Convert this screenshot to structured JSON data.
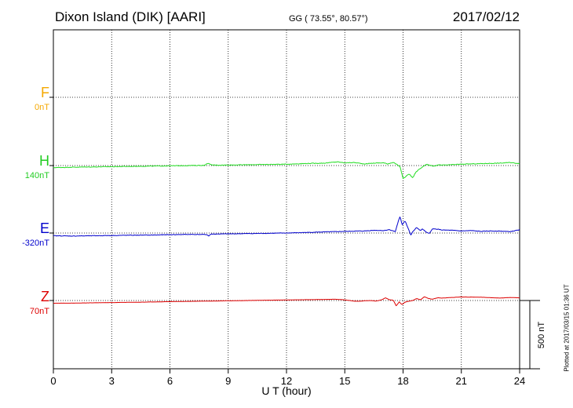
{
  "header": {
    "station": "Dixon Island (DIK)  [AARI]",
    "coords": "GG ( 73.55°,  80.57°)",
    "date": "2017/02/12"
  },
  "plotted_note": "Plotted at 2017/03/15 01:36 UT",
  "scale_label": "500 nT",
  "chart_data": {
    "type": "line",
    "xlabel": "U T (hour)",
    "xlim": [
      0,
      24
    ],
    "x_ticks": [
      "0",
      "3",
      "6",
      "9",
      "12",
      "15",
      "18",
      "21",
      "24"
    ],
    "grid": true,
    "scale_bar_nT": 500,
    "series": [
      {
        "name": "F",
        "baseline": "0nT",
        "color": "#f5a800",
        "points": []
      },
      {
        "name": "H",
        "baseline": "140nT",
        "color": "#22dd22",
        "points": [
          [
            0,
            -15
          ],
          [
            1,
            -12
          ],
          [
            2,
            -10
          ],
          [
            3,
            -8
          ],
          [
            4,
            -6
          ],
          [
            5,
            -4
          ],
          [
            6,
            -2
          ],
          [
            7,
            0
          ],
          [
            7.8,
            2
          ],
          [
            7.95,
            18
          ],
          [
            8.1,
            5
          ],
          [
            8.5,
            3
          ],
          [
            9,
            4
          ],
          [
            10,
            6
          ],
          [
            11,
            8
          ],
          [
            12,
            10
          ],
          [
            13,
            15
          ],
          [
            14,
            18
          ],
          [
            14.6,
            27
          ],
          [
            15,
            20
          ],
          [
            15.5,
            22
          ],
          [
            16,
            12
          ],
          [
            16.5,
            18
          ],
          [
            17,
            20
          ],
          [
            17.2,
            12
          ],
          [
            17.5,
            24
          ],
          [
            17.7,
            5
          ],
          [
            17.85,
            -10
          ],
          [
            18,
            -95
          ],
          [
            18.15,
            -80
          ],
          [
            18.3,
            -60
          ],
          [
            18.5,
            -90
          ],
          [
            18.65,
            -50
          ],
          [
            18.8,
            -30
          ],
          [
            19,
            -10
          ],
          [
            19.2,
            10
          ],
          [
            19.4,
            0
          ],
          [
            19.6,
            -5
          ],
          [
            19.8,
            5
          ],
          [
            20,
            3
          ],
          [
            20.5,
            6
          ],
          [
            21,
            10
          ],
          [
            22,
            14
          ],
          [
            23,
            18
          ],
          [
            23.5,
            22
          ],
          [
            24,
            15
          ]
        ]
      },
      {
        "name": "E",
        "baseline": "-320nT",
        "color": "#0000cc",
        "points": [
          [
            0,
            -20
          ],
          [
            1,
            -22
          ],
          [
            2,
            -20
          ],
          [
            3,
            -18
          ],
          [
            4,
            -16
          ],
          [
            5,
            -15
          ],
          [
            6,
            -12
          ],
          [
            7,
            -10
          ],
          [
            7.9,
            -11
          ],
          [
            8,
            -22
          ],
          [
            8.1,
            -8
          ],
          [
            9,
            -6
          ],
          [
            10,
            -4
          ],
          [
            11,
            -2
          ],
          [
            12,
            0
          ],
          [
            13,
            4
          ],
          [
            14,
            8
          ],
          [
            15,
            12
          ],
          [
            16,
            15
          ],
          [
            16.5,
            20
          ],
          [
            17,
            18
          ],
          [
            17.3,
            25
          ],
          [
            17.6,
            10
          ],
          [
            17.75,
            85
          ],
          [
            17.85,
            120
          ],
          [
            17.95,
            60
          ],
          [
            18.1,
            90
          ],
          [
            18.25,
            40
          ],
          [
            18.4,
            -15
          ],
          [
            18.5,
            10
          ],
          [
            18.7,
            40
          ],
          [
            18.9,
            18
          ],
          [
            19,
            30
          ],
          [
            19.2,
            5
          ],
          [
            19.35,
            -5
          ],
          [
            19.5,
            30
          ],
          [
            19.8,
            28
          ],
          [
            20,
            22
          ],
          [
            20.5,
            20
          ],
          [
            21,
            15
          ],
          [
            21.5,
            18
          ],
          [
            22,
            12
          ],
          [
            22.5,
            15
          ],
          [
            23,
            14
          ],
          [
            23.5,
            10
          ],
          [
            23.8,
            18
          ],
          [
            24,
            25
          ]
        ]
      },
      {
        "name": "Z",
        "baseline": "70nT",
        "color": "#dd0000",
        "points": [
          [
            0,
            -20
          ],
          [
            1,
            -19
          ],
          [
            2,
            -17
          ],
          [
            3,
            -15
          ],
          [
            4,
            -13
          ],
          [
            5,
            -11
          ],
          [
            6,
            -8
          ],
          [
            7,
            -6
          ],
          [
            8,
            -4
          ],
          [
            9,
            -2
          ],
          [
            10,
            0
          ],
          [
            11,
            2
          ],
          [
            12,
            4
          ],
          [
            13,
            6
          ],
          [
            14,
            8
          ],
          [
            14.5,
            9
          ],
          [
            15,
            5
          ],
          [
            15.5,
            -5
          ],
          [
            15.8,
            -6
          ],
          [
            16,
            -2
          ],
          [
            16.3,
            0
          ],
          [
            16.6,
            -4
          ],
          [
            16.9,
            5
          ],
          [
            17.1,
            20
          ],
          [
            17.3,
            5
          ],
          [
            17.5,
            2
          ],
          [
            17.65,
            -40
          ],
          [
            17.8,
            -10
          ],
          [
            17.95,
            -30
          ],
          [
            18.1,
            -12
          ],
          [
            18.3,
            -5
          ],
          [
            18.5,
            0
          ],
          [
            18.7,
            15
          ],
          [
            18.9,
            5
          ],
          [
            19.1,
            28
          ],
          [
            19.3,
            15
          ],
          [
            19.5,
            10
          ],
          [
            19.8,
            20
          ],
          [
            20,
            18
          ],
          [
            20.5,
            22
          ],
          [
            21,
            26
          ],
          [
            22,
            24
          ],
          [
            23,
            18
          ],
          [
            23.5,
            22
          ],
          [
            24,
            20
          ]
        ]
      }
    ]
  }
}
